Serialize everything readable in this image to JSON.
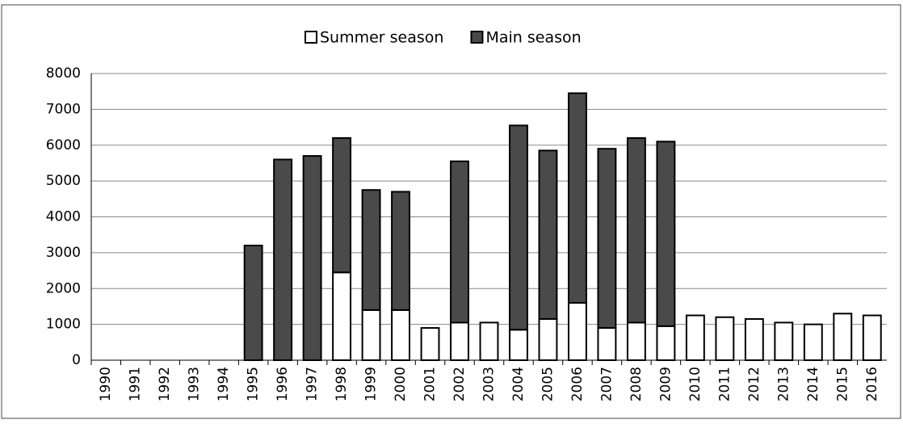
{
  "chart_data": {
    "type": "stacked-bar",
    "categories": [
      "1990",
      "1991",
      "1992",
      "1993",
      "1994",
      "1995",
      "1996",
      "1997",
      "1998",
      "1999",
      "2000",
      "2001",
      "2002",
      "2003",
      "2004",
      "2005",
      "2006",
      "2007",
      "2008",
      "2009",
      "2010",
      "2011",
      "2012",
      "2013",
      "2014",
      "2015",
      "2016"
    ],
    "series": [
      {
        "name": "Summer season",
        "color": "#ffffff",
        "values": [
          null,
          null,
          null,
          null,
          null,
          null,
          null,
          null,
          2450,
          1400,
          1400,
          900,
          1050,
          1050,
          850,
          1150,
          1600,
          900,
          1050,
          950,
          1250,
          1200,
          1150,
          1050,
          1000,
          1300,
          1250
        ]
      },
      {
        "name": "Main season",
        "color": "#4a4a4a",
        "values": [
          null,
          null,
          null,
          null,
          null,
          3200,
          5600,
          5700,
          3750,
          3350,
          3300,
          null,
          4500,
          null,
          5700,
          4700,
          5850,
          5000,
          5150,
          5150,
          null,
          null,
          null,
          null,
          null,
          null,
          null
        ]
      }
    ],
    "ylim": [
      0,
      8000
    ],
    "yticks": [
      0,
      1000,
      2000,
      3000,
      4000,
      5000,
      6000,
      7000,
      8000
    ],
    "grid": true,
    "legend": "top"
  }
}
